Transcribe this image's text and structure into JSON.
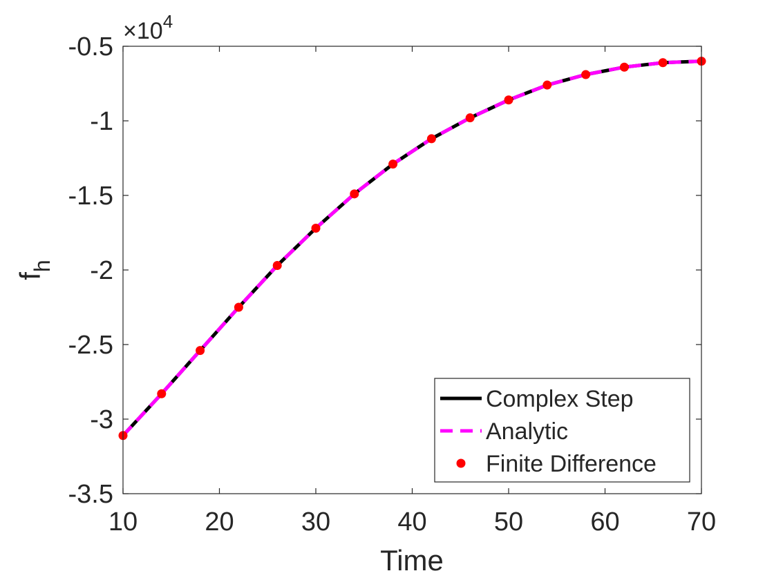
{
  "chart_data": {
    "type": "line",
    "xlabel": "Time",
    "ylabel": "f",
    "ylabel_subscript": "h",
    "y_exponent_label": "×10",
    "y_exponent_power": "4",
    "xlim": [
      10,
      70
    ],
    "ylim": [
      -3.5,
      -0.5
    ],
    "xticks": [
      10,
      20,
      30,
      40,
      50,
      60,
      70
    ],
    "xtick_labels": [
      "10",
      "20",
      "30",
      "40",
      "50",
      "60",
      "70"
    ],
    "yticks": [
      -3.5,
      -3,
      -2.5,
      -2,
      -1.5,
      -1,
      -0.5
    ],
    "ytick_labels": [
      "-3.5",
      "-3",
      "-2.5",
      "-2",
      "-1.5",
      "-1",
      "-0.5"
    ],
    "grid": false,
    "legend_position": "bottom-right",
    "x": [
      10,
      14,
      18,
      22,
      26,
      30,
      34,
      38,
      42,
      46,
      50,
      54,
      58,
      62,
      66,
      70
    ],
    "series": [
      {
        "name": "Complex Step",
        "style": "solid",
        "color": "#000000",
        "values": [
          -3.11,
          -2.83,
          -2.54,
          -2.25,
          -1.97,
          -1.72,
          -1.49,
          -1.29,
          -1.12,
          -0.98,
          -0.86,
          -0.76,
          -0.69,
          -0.64,
          -0.61,
          -0.6
        ]
      },
      {
        "name": "Analytic",
        "style": "dashed",
        "color": "#ff00ff",
        "values": [
          -3.11,
          -2.83,
          -2.54,
          -2.25,
          -1.97,
          -1.72,
          -1.49,
          -1.29,
          -1.12,
          -0.98,
          -0.86,
          -0.76,
          -0.69,
          -0.64,
          -0.61,
          -0.6
        ]
      },
      {
        "name": "Finite Difference",
        "style": "markers",
        "color": "#ff0000",
        "values": [
          -3.11,
          -2.83,
          -2.54,
          -2.25,
          -1.97,
          -1.72,
          -1.49,
          -1.29,
          -1.12,
          -0.98,
          -0.86,
          -0.76,
          -0.69,
          -0.64,
          -0.61,
          -0.6
        ]
      }
    ]
  }
}
